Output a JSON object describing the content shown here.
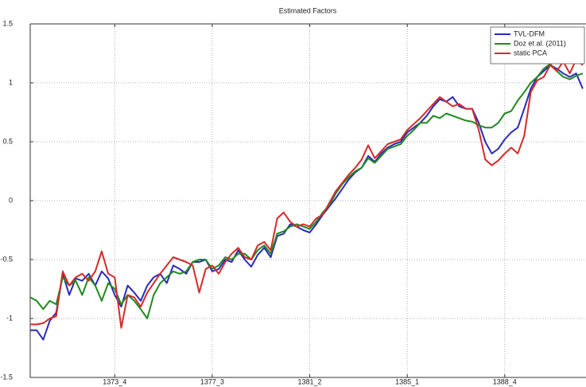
{
  "chart_data": {
    "type": "line",
    "title": "Estimated Factors",
    "categories": [
      null,
      null,
      null,
      null,
      null,
      null,
      null,
      null,
      null,
      null,
      null,
      null,
      null,
      "1373_4",
      null,
      null,
      null,
      null,
      null,
      null,
      null,
      null,
      null,
      null,
      null,
      null,
      null,
      null,
      "1377_3",
      null,
      null,
      null,
      null,
      null,
      null,
      null,
      null,
      null,
      null,
      null,
      null,
      null,
      null,
      "1381_2",
      null,
      null,
      null,
      null,
      null,
      null,
      null,
      null,
      null,
      null,
      null,
      null,
      null,
      null,
      "1385_1",
      null,
      null,
      null,
      null,
      null,
      null,
      null,
      null,
      null,
      null,
      null,
      null,
      null,
      null,
      "1388_4",
      null,
      null,
      null,
      null,
      null,
      null,
      null,
      null,
      null,
      null,
      null,
      null
    ],
    "series": [
      {
        "name": "TVL-DFM",
        "color": "#2b2bb8",
        "values": [
          -1.1,
          -1.1,
          -1.18,
          -1.02,
          -0.95,
          -0.62,
          -0.8,
          -0.66,
          -0.68,
          -0.62,
          -0.72,
          -0.6,
          -0.66,
          -0.8,
          -0.9,
          -0.72,
          -0.78,
          -0.85,
          -0.72,
          -0.65,
          -0.62,
          -0.7,
          -0.55,
          -0.58,
          -0.62,
          -0.52,
          -0.52,
          -0.5,
          -0.6,
          -0.58,
          -0.5,
          -0.52,
          -0.42,
          -0.5,
          -0.56,
          -0.46,
          -0.4,
          -0.48,
          -0.3,
          -0.28,
          -0.2,
          -0.22,
          -0.25,
          -0.27,
          -0.2,
          -0.12,
          -0.05,
          0.02,
          0.1,
          0.18,
          0.24,
          0.28,
          0.38,
          0.33,
          0.4,
          0.45,
          0.48,
          0.5,
          0.58,
          0.62,
          0.66,
          0.72,
          0.8,
          0.86,
          0.84,
          0.88,
          0.8,
          0.78,
          0.78,
          0.66,
          0.5,
          0.4,
          0.44,
          0.52,
          0.58,
          0.62,
          0.78,
          0.95,
          1.05,
          1.1,
          1.15,
          1.12,
          1.08,
          1.05,
          1.08,
          0.95
        ]
      },
      {
        "name": "Doz et al. (2011)",
        "color": "#1f8a1f",
        "values": [
          -0.82,
          -0.85,
          -0.92,
          -0.85,
          -0.88,
          -0.65,
          -0.72,
          -0.68,
          -0.8,
          -0.65,
          -0.72,
          -0.85,
          -0.7,
          -0.75,
          -0.88,
          -0.8,
          -0.85,
          -0.92,
          -1.0,
          -0.8,
          -0.7,
          -0.65,
          -0.6,
          -0.62,
          -0.6,
          -0.52,
          -0.5,
          -0.5,
          -0.58,
          -0.55,
          -0.48,
          -0.5,
          -0.45,
          -0.45,
          -0.5,
          -0.42,
          -0.38,
          -0.45,
          -0.28,
          -0.26,
          -0.22,
          -0.2,
          -0.22,
          -0.24,
          -0.18,
          -0.1,
          -0.04,
          0.06,
          0.14,
          0.2,
          0.25,
          0.28,
          0.36,
          0.32,
          0.38,
          0.44,
          0.46,
          0.48,
          0.55,
          0.6,
          0.66,
          0.66,
          0.72,
          0.7,
          0.74,
          0.72,
          0.7,
          0.68,
          0.67,
          0.64,
          0.62,
          0.62,
          0.66,
          0.74,
          0.76,
          0.85,
          0.92,
          1.0,
          1.05,
          1.12,
          1.16,
          1.1,
          1.05,
          1.03,
          1.06,
          1.08
        ]
      },
      {
        "name": "static PCA",
        "color": "#d42a2a",
        "values": [
          -1.05,
          -1.05,
          -1.04,
          -1.0,
          -0.98,
          -0.6,
          -0.72,
          -0.65,
          -0.62,
          -0.68,
          -0.6,
          -0.43,
          -0.62,
          -0.65,
          -1.08,
          -0.8,
          -0.82,
          -0.9,
          -0.78,
          -0.7,
          -0.62,
          -0.55,
          -0.48,
          -0.5,
          -0.52,
          -0.55,
          -0.78,
          -0.58,
          -0.55,
          -0.62,
          -0.52,
          -0.45,
          -0.4,
          -0.48,
          -0.5,
          -0.38,
          -0.35,
          -0.42,
          -0.15,
          -0.1,
          -0.18,
          -0.22,
          -0.2,
          -0.22,
          -0.15,
          -0.12,
          -0.02,
          0.08,
          0.15,
          0.22,
          0.28,
          0.35,
          0.47,
          0.36,
          0.42,
          0.48,
          0.5,
          0.52,
          0.6,
          0.65,
          0.7,
          0.76,
          0.82,
          0.88,
          0.84,
          0.8,
          0.82,
          0.78,
          0.78,
          0.6,
          0.35,
          0.3,
          0.34,
          0.4,
          0.45,
          0.4,
          0.55,
          0.92,
          1.02,
          1.05,
          1.15,
          1.1,
          1.18,
          1.08,
          1.2,
          1.15
        ]
      }
    ],
    "ylim": [
      -1.5,
      1.5
    ],
    "yticks": [
      -1.5,
      -1,
      -0.5,
      0,
      0.5,
      1,
      1.5
    ],
    "grid": true,
    "legend": "upper right"
  }
}
